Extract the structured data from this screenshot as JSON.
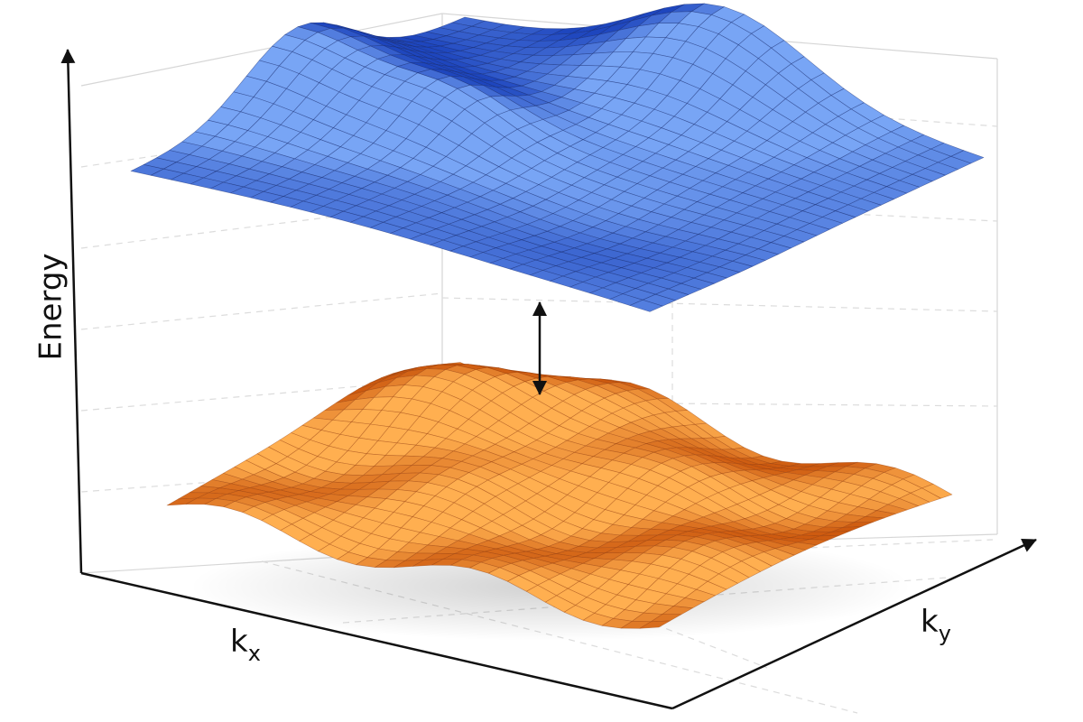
{
  "axes": {
    "energy": "Energy",
    "kx": {
      "symbol": "k",
      "subscript": "x"
    },
    "ky": {
      "symbol": "k",
      "subscript": "y"
    }
  }
}
